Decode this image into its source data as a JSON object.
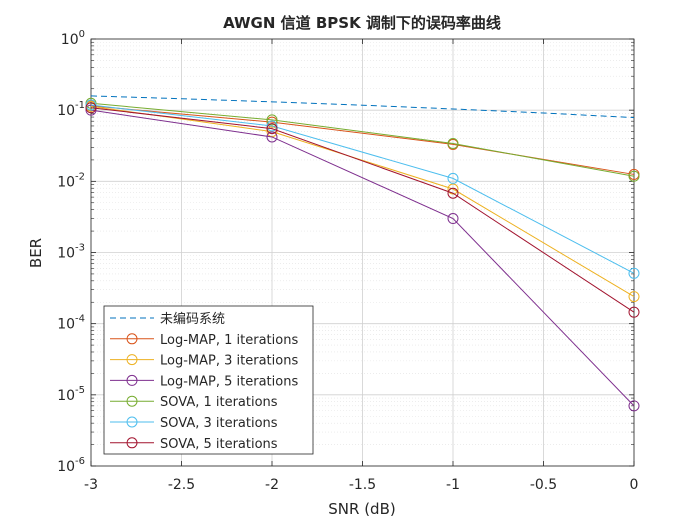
{
  "chart_data": {
    "type": "line",
    "title": "AWGN 信道 BPSK 调制下的误码率曲线",
    "xlabel": "SNR (dB)",
    "ylabel": "BER",
    "xlim": [
      -3,
      0
    ],
    "ylim": [
      1e-06,
      1
    ],
    "yscale": "log",
    "grid": true,
    "minor_grid": true,
    "legend_position": "bottom-left",
    "x_ticks": [
      {
        "value": -3,
        "label": "-3"
      },
      {
        "value": -2.5,
        "label": "-2.5"
      },
      {
        "value": -2,
        "label": "-2"
      },
      {
        "value": -1.5,
        "label": "-1.5"
      },
      {
        "value": -1,
        "label": "-1"
      },
      {
        "value": -0.5,
        "label": "-0.5"
      },
      {
        "value": 0,
        "label": "0"
      }
    ],
    "y_ticks": [
      {
        "value": 1,
        "base": "10",
        "exp": "0"
      },
      {
        "value": 0.1,
        "base": "10",
        "exp": "-1"
      },
      {
        "value": 0.01,
        "base": "10",
        "exp": "-2"
      },
      {
        "value": 0.001,
        "base": "10",
        "exp": "-3"
      },
      {
        "value": 0.0001,
        "base": "10",
        "exp": "-4"
      },
      {
        "value": 1e-05,
        "base": "10",
        "exp": "-5"
      },
      {
        "value": 1e-06,
        "base": "10",
        "exp": "-6"
      }
    ],
    "series": [
      {
        "name": "未编码系统",
        "color": "#0072BD",
        "style": "dashed",
        "marker": "none",
        "x": [
          -3,
          -2.5,
          -2,
          -1.5,
          -1,
          -0.5,
          0
        ],
        "y": [
          0.1587,
          0.1447,
          0.1309,
          0.1174,
          0.104,
          0.0912,
          0.0786
        ]
      },
      {
        "name": "Log-MAP, 1 iterations",
        "color": "#D95319",
        "style": "solid",
        "marker": "circle",
        "x": [
          -3,
          -2,
          -1,
          0
        ],
        "y": [
          0.115,
          0.068,
          0.033,
          0.0125
        ]
      },
      {
        "name": "Log-MAP, 3 iterations",
        "color": "#EDB120",
        "style": "solid",
        "marker": "circle",
        "x": [
          -3,
          -2,
          -1,
          0
        ],
        "y": [
          0.113,
          0.05,
          0.0078,
          0.00024
        ]
      },
      {
        "name": "Log-MAP, 5 iterations",
        "color": "#7E2F8E",
        "style": "solid",
        "marker": "circle",
        "x": [
          -3,
          -2,
          -1,
          0
        ],
        "y": [
          0.1,
          0.042,
          0.003,
          7e-06
        ]
      },
      {
        "name": "SOVA, 1 iterations",
        "color": "#77AC30",
        "style": "solid",
        "marker": "circle",
        "x": [
          -3,
          -2,
          -1,
          0
        ],
        "y": [
          0.125,
          0.073,
          0.034,
          0.0118
        ]
      },
      {
        "name": "SOVA, 3 iterations",
        "color": "#4DBEEE",
        "style": "solid",
        "marker": "circle",
        "x": [
          -3,
          -2,
          -1,
          0
        ],
        "y": [
          0.118,
          0.06,
          0.011,
          0.00051
        ]
      },
      {
        "name": "SOVA, 5 iterations",
        "color": "#A2142F",
        "style": "solid",
        "marker": "circle",
        "x": [
          -3,
          -2,
          -1,
          0
        ],
        "y": [
          0.108,
          0.055,
          0.0068,
          0.000145
        ]
      }
    ]
  }
}
